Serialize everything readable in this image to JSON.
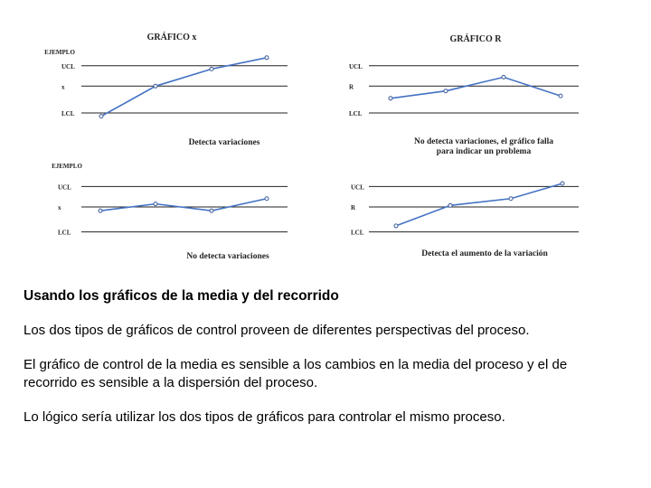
{
  "colors": {
    "line": "#4472c4",
    "point": "#3c5a99",
    "grid": "#222222",
    "text": "#222222"
  },
  "chart_data": [
    {
      "type": "line",
      "title": "GRÁFICO x",
      "corner_label": "EJEMPLO",
      "limit_labels": [
        "UCL",
        "x",
        "LCL"
      ],
      "caption": "Detecta variaciones",
      "x": [
        1,
        2,
        3,
        4
      ],
      "series": [
        {
          "values": [
            0.6,
            4.3,
            6.4,
            7.8
          ]
        }
      ],
      "ylim": [
        0,
        8
      ],
      "limit_values": [
        6.8,
        4.3,
        1.0
      ]
    },
    {
      "type": "line",
      "title": "GRÁFICO R",
      "corner_label": "",
      "limit_labels": [
        "UCL",
        "R",
        "LCL"
      ],
      "caption": "No detecta variaciones, el gráfico falla para indicar un problema",
      "x": [
        1,
        2,
        3,
        4
      ],
      "series": [
        {
          "values": [
            2.8,
            3.7,
            5.4,
            3.1
          ]
        }
      ],
      "ylim": [
        0,
        8
      ],
      "limit_values": [
        6.8,
        4.3,
        1.0
      ]
    },
    {
      "type": "line",
      "title": "",
      "corner_label": "EJEMPLO",
      "limit_labels": [
        "UCL",
        "x",
        "LCL"
      ],
      "caption": "No detecta variaciones",
      "x": [
        1,
        2,
        3,
        4
      ],
      "series": [
        {
          "values": [
            3.8,
            4.7,
            3.8,
            5.4
          ]
        }
      ],
      "ylim": [
        0,
        8
      ],
      "limit_values": [
        7.0,
        4.3,
        1.0
      ]
    },
    {
      "type": "line",
      "title": "",
      "corner_label": "",
      "limit_labels": [
        "UCL",
        "R",
        "LCL"
      ],
      "caption": "Detecta el aumento de la variación",
      "x": [
        1,
        2,
        3,
        4
      ],
      "series": [
        {
          "values": [
            1.8,
            4.5,
            5.4,
            7.4
          ]
        }
      ],
      "ylim": [
        0,
        8
      ],
      "limit_values": [
        7.0,
        4.3,
        1.0
      ]
    }
  ],
  "text": {
    "heading": "Usando los gráficos de la media y del recorrido",
    "p1": "Los dos tipos de gráficos de control proveen de diferentes perspectivas del proceso.",
    "p2": "El gráfico de control de la media es sensible a los cambios en la media del proceso y el de recorrido es sensible a la dispersión del proceso.",
    "p3": "Lo lógico sería utilizar los dos tipos de gráficos para controlar el mismo proceso."
  }
}
